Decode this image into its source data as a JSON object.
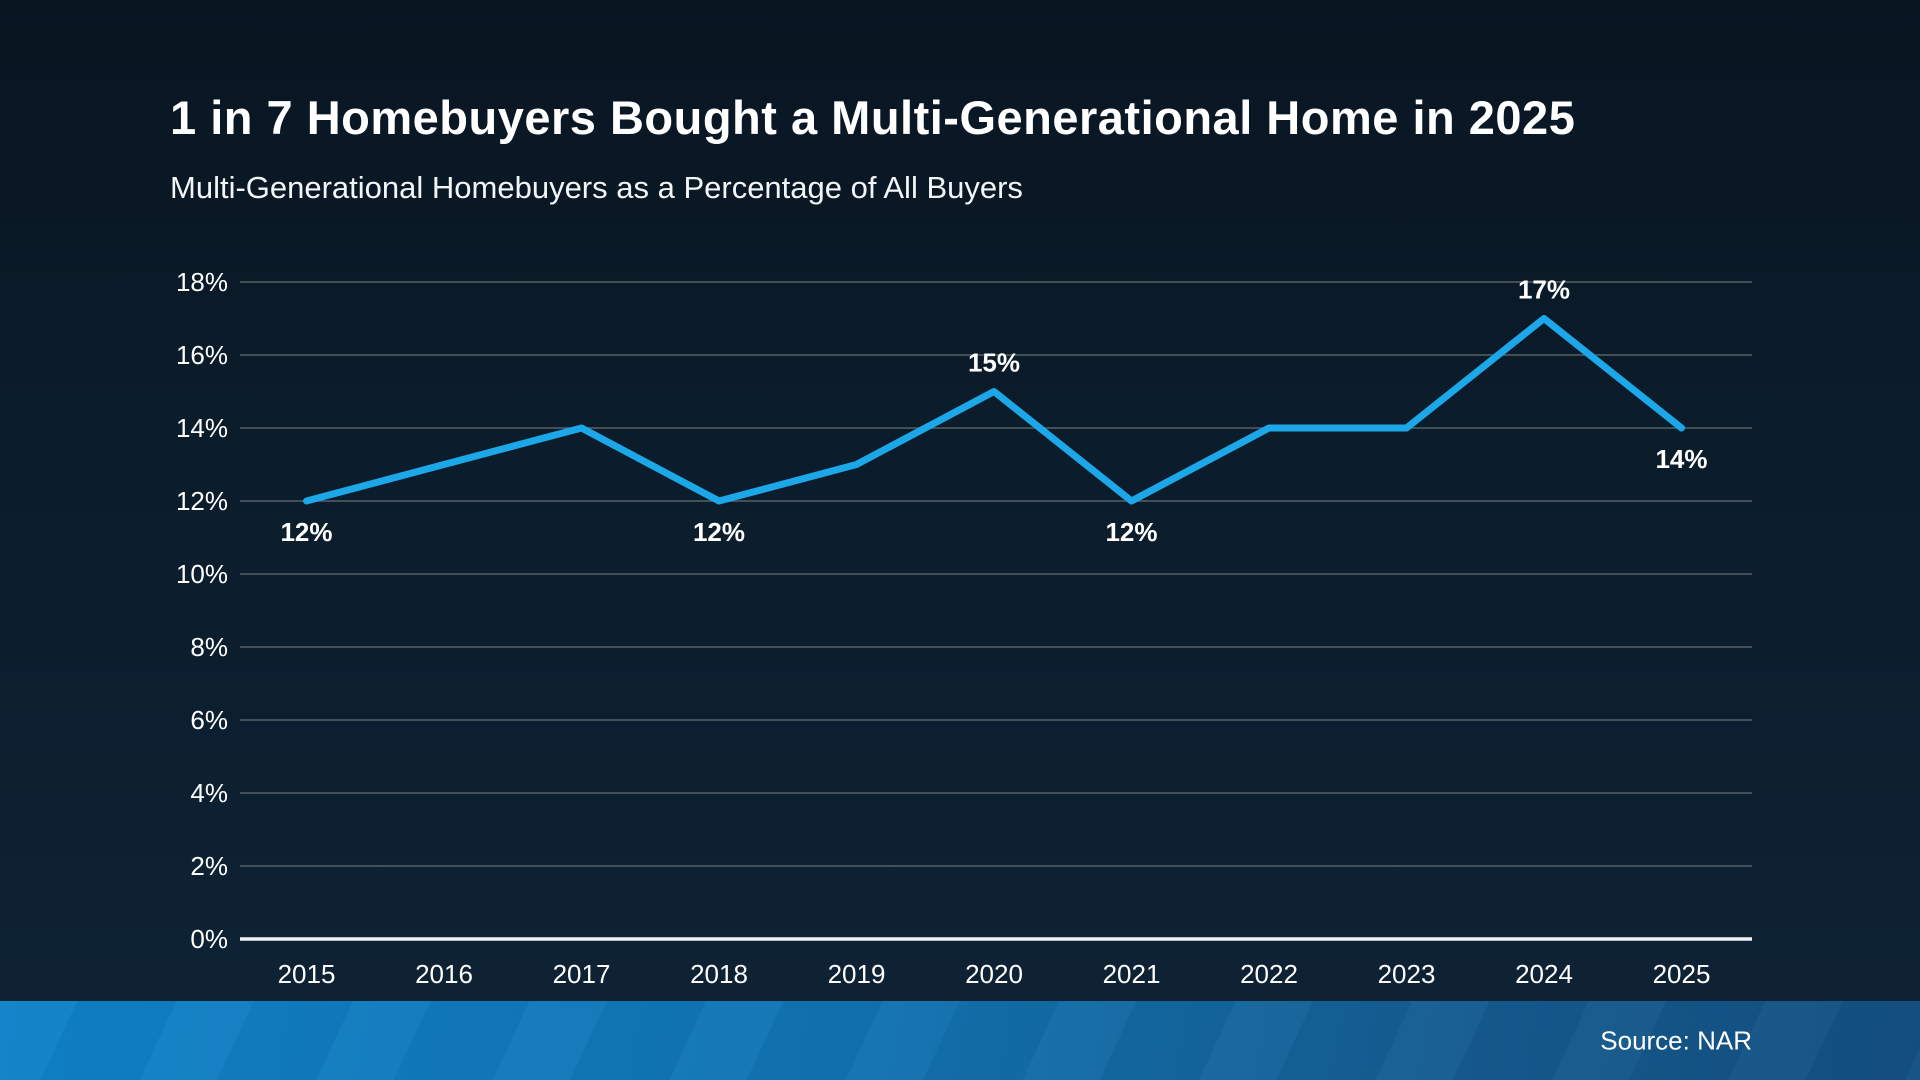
{
  "header": {
    "title": "1 in 7 Homebuyers Bought a Multi-Generational Home in 2025",
    "subtitle": "Multi-Generational Homebuyers as a Percentage of All Buyers"
  },
  "footer": {
    "source": "Source: NAR"
  },
  "colors": {
    "line": "#1ca7e8",
    "gridline": "#566067",
    "axis_line": "#eef3f6",
    "text": "#ffffff",
    "background_top": "#091521",
    "background_bottom": "#0e2335",
    "footer_bar_left": "#0f82c9",
    "footer_bar_right": "#135081"
  },
  "chart_data": {
    "type": "line",
    "title": "1 in 7 Homebuyers Bought a Multi-Generational Home in 2025",
    "subtitle": "Multi-Generational Homebuyers as a Percentage of All Buyers",
    "categories": [
      "2015",
      "2016",
      "2017",
      "2018",
      "2019",
      "2020",
      "2021",
      "2022",
      "2023",
      "2024",
      "2025"
    ],
    "series": [
      {
        "name": "Multi-Generational Homebuyers as a Percentage of All Buyers",
        "values": [
          12,
          13,
          14,
          12,
          13,
          15,
          12,
          14,
          14,
          17,
          14
        ]
      }
    ],
    "xlabel": "",
    "ylabel": "",
    "ylim": [
      0,
      18
    ],
    "ytick_step": 2,
    "ytick_suffix": "%",
    "grid": true,
    "legend": false,
    "point_labels": [
      {
        "category": "2015",
        "text": "12%",
        "placement": "below"
      },
      {
        "category": "2018",
        "text": "12%",
        "placement": "below"
      },
      {
        "category": "2020",
        "text": "15%",
        "placement": "above"
      },
      {
        "category": "2021",
        "text": "12%",
        "placement": "below"
      },
      {
        "category": "2024",
        "text": "17%",
        "placement": "above"
      },
      {
        "category": "2025",
        "text": "14%",
        "placement": "below"
      }
    ]
  }
}
